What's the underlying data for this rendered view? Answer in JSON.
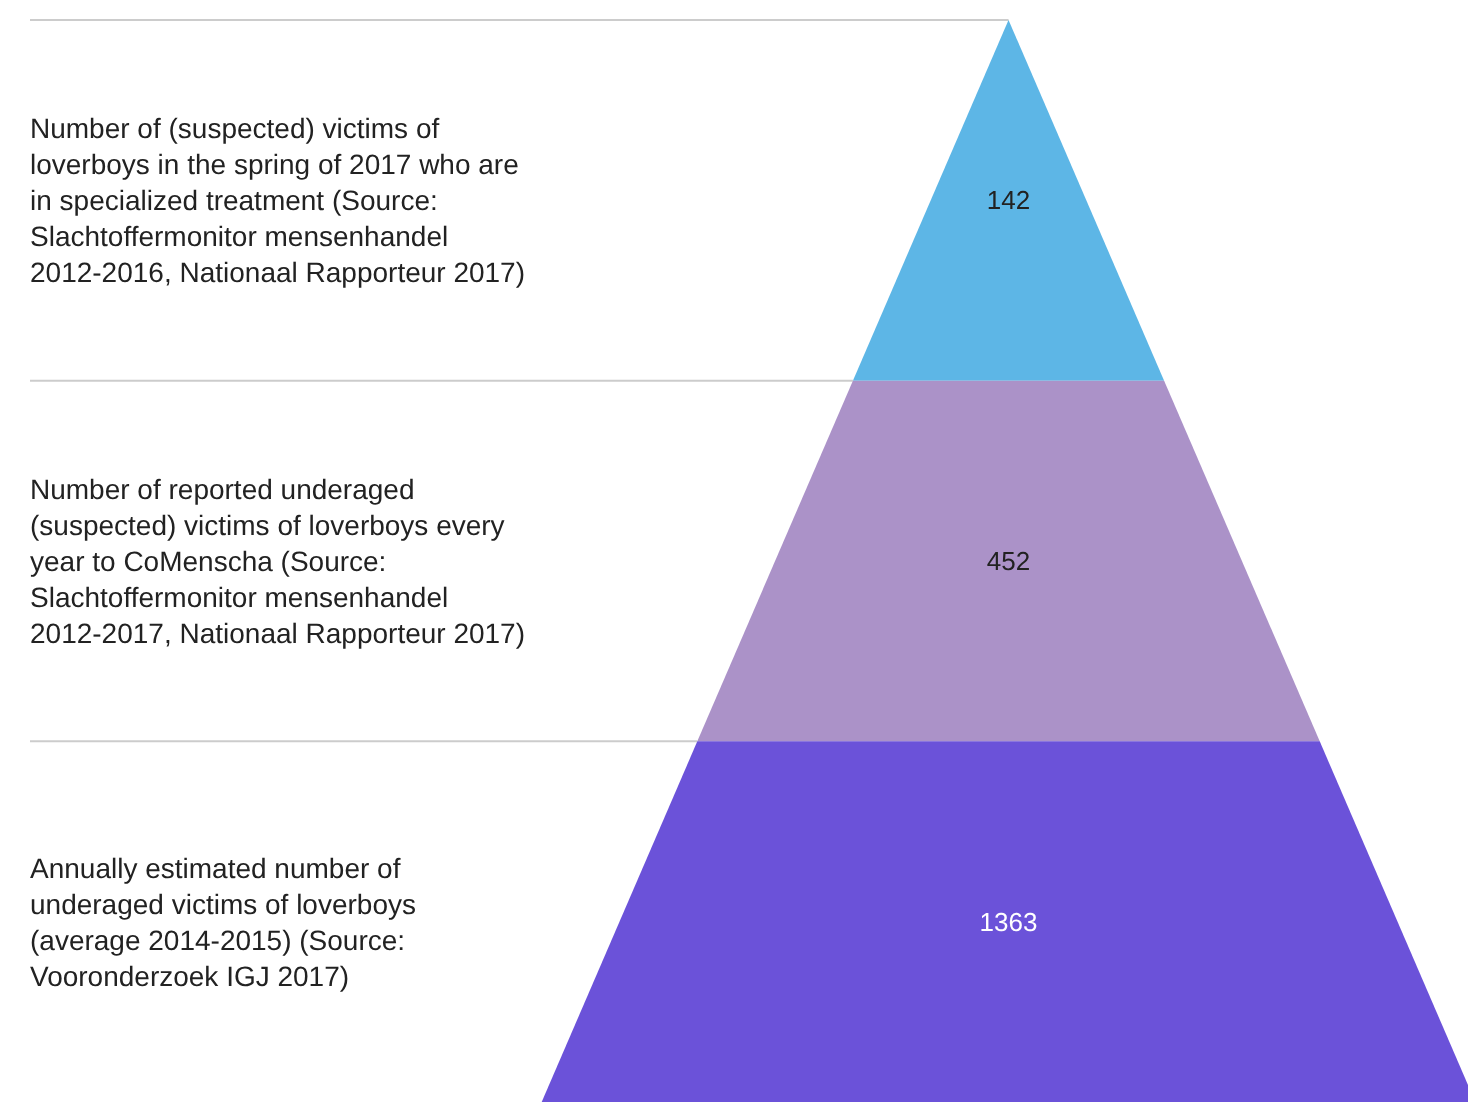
{
  "chart_data": {
    "type": "other",
    "categories": [
      "Number of (suspected) victims of loverboys in the spring of 2017 who are in specialized treatment (Source: Slachtoffermonitor mensenhandel 2012-2016, Nationaal Rapporteur 2017)",
      "Number of reported underaged (suspected) victims of loverboys every year to CoMenscha (Source: Slachtoffermonitor mensenhandel 2012-2017, Nationaal Rapporteur 2017)",
      "Annually estimated number of underaged victims of loverboys (average 2014-2015) (Source: Vooronderzoek IGJ 2017)"
    ],
    "values": [
      142,
      452,
      1363
    ],
    "colors": [
      "#5db6e6",
      "#ab92c8",
      "#6b52d9"
    ],
    "data_labels": true
  }
}
